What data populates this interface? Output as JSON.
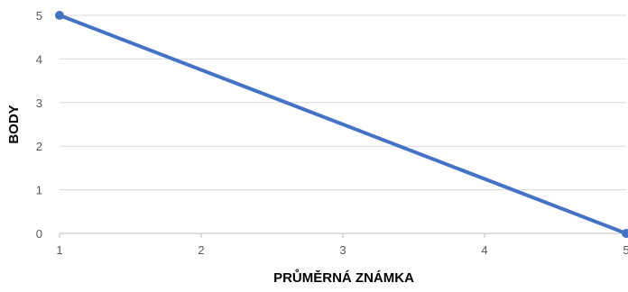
{
  "chart_data": {
    "type": "line",
    "title": "",
    "xlabel": "PRŮMĚRNÁ ZNÁMKA",
    "ylabel": "BODY",
    "x": [
      1,
      5
    ],
    "series": [
      {
        "values": [
          5,
          0
        ],
        "color": "#4472c4"
      }
    ],
    "xlim": [
      1,
      5
    ],
    "ylim": [
      0,
      5
    ],
    "xticks": [
      "1",
      "2",
      "3",
      "4",
      "5"
    ],
    "yticks": [
      "0",
      "1",
      "2",
      "3",
      "4",
      "5"
    ],
    "grid": "horizontal",
    "legend": "none",
    "markers": true
  }
}
